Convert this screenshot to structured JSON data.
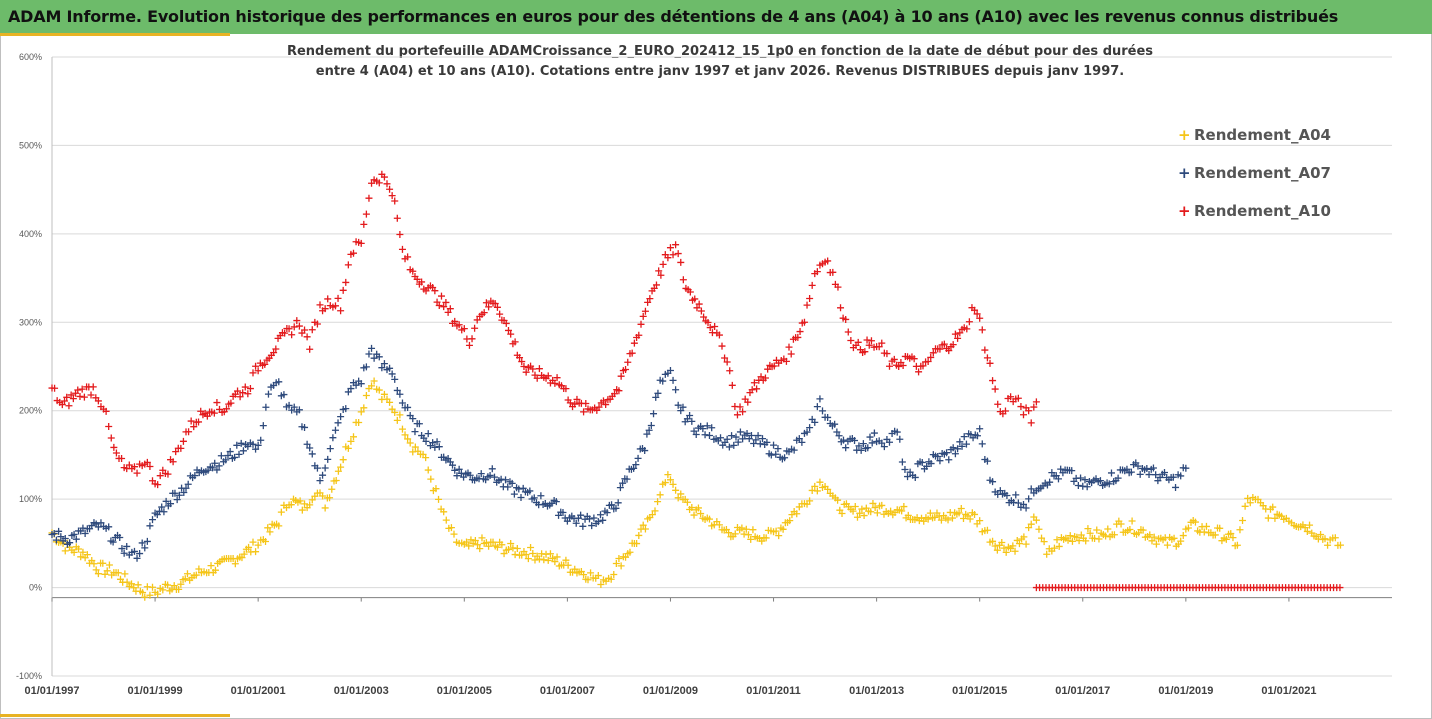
{
  "header": {
    "title": "ADAM Informe. Evolution historique des performances en euros pour des détentions de 4 ans (A04) à 10 ans (A10) avec les revenus connus distribués"
  },
  "colors": {
    "banner": "#6dbb6a",
    "accent": "#e8b324",
    "A04": "#f5c518",
    "A07": "#2e4a7c",
    "A10": "#e31a1c"
  },
  "chart_data": {
    "type": "scatter",
    "title_line1": "Rendement du portefeuille ADAMCroissance_2_EURO_202412_15_1p0  en fonction de la date de début pour des durées",
    "title_line2": "entre 4 (A04) et 10 ans (A10). Cotations entre janv 1997 et janv 2026. Revenus DISTRIBUES depuis janv 1997.",
    "marker": "+",
    "x_unit": "year",
    "xlim": [
      1997.0,
      2022.0
    ],
    "ylim": [
      -100,
      600
    ],
    "y_ticks": [
      -100,
      0,
      100,
      200,
      300,
      400,
      500,
      600
    ],
    "y_tick_labels": [
      "-100%",
      "0%",
      "100%",
      "200%",
      "300%",
      "400%",
      "500%",
      "600%"
    ],
    "x_ticks": [
      1997,
      1999,
      2001,
      2003,
      2005,
      2007,
      2009,
      2011,
      2013,
      2015,
      2017,
      2019,
      2021
    ],
    "x_tick_labels": [
      "01/01/1997",
      "01/01/1999",
      "01/01/2001",
      "01/01/2003",
      "01/01/2005",
      "01/01/2007",
      "01/01/2009",
      "01/01/2011",
      "01/01/2013",
      "01/01/2015",
      "01/01/2017",
      "01/01/2019",
      "01/01/2021"
    ],
    "grid": true,
    "legend_position": "top-right",
    "series": [
      {
        "name": "Rendement_A04",
        "color": "#f5c518",
        "points": [
          [
            1997.0,
            62
          ],
          [
            1997.3,
            45
          ],
          [
            1997.6,
            40
          ],
          [
            1997.9,
            22
          ],
          [
            1998.2,
            18
          ],
          [
            1998.5,
            5
          ],
          [
            1998.8,
            -5
          ],
          [
            1999.0,
            -5
          ],
          [
            1999.2,
            0
          ],
          [
            1999.5,
            5
          ],
          [
            1999.8,
            15
          ],
          [
            2000.0,
            20
          ],
          [
            2000.3,
            25
          ],
          [
            2000.6,
            35
          ],
          [
            2000.9,
            45
          ],
          [
            2001.1,
            55
          ],
          [
            2001.4,
            75
          ],
          [
            2001.6,
            100
          ],
          [
            2001.9,
            90
          ],
          [
            2002.1,
            110
          ],
          [
            2002.3,
            95
          ],
          [
            2002.6,
            140
          ],
          [
            2002.8,
            170
          ],
          [
            2003.0,
            200
          ],
          [
            2003.2,
            235
          ],
          [
            2003.4,
            215
          ],
          [
            2003.6,
            205
          ],
          [
            2003.8,
            185
          ],
          [
            2004.0,
            160
          ],
          [
            2004.2,
            150
          ],
          [
            2004.4,
            115
          ],
          [
            2004.6,
            80
          ],
          [
            2004.8,
            55
          ],
          [
            2005.0,
            45
          ],
          [
            2005.3,
            50
          ],
          [
            2005.6,
            47
          ],
          [
            2005.9,
            43
          ],
          [
            2006.2,
            40
          ],
          [
            2006.5,
            36
          ],
          [
            2006.8,
            30
          ],
          [
            2007.1,
            22
          ],
          [
            2007.4,
            15
          ],
          [
            2007.6,
            8
          ],
          [
            2007.8,
            12
          ],
          [
            2008.0,
            28
          ],
          [
            2008.3,
            50
          ],
          [
            2008.6,
            75
          ],
          [
            2008.8,
            110
          ],
          [
            2009.0,
            125
          ],
          [
            2009.2,
            100
          ],
          [
            2009.5,
            85
          ],
          [
            2009.8,
            75
          ],
          [
            2010.0,
            65
          ],
          [
            2010.3,
            62
          ],
          [
            2010.6,
            60
          ],
          [
            2010.9,
            58
          ],
          [
            2011.1,
            65
          ],
          [
            2011.4,
            85
          ],
          [
            2011.6,
            95
          ],
          [
            2011.8,
            115
          ],
          [
            2012.0,
            120
          ],
          [
            2012.2,
            95
          ],
          [
            2012.5,
            85
          ],
          [
            2012.8,
            88
          ],
          [
            2013.1,
            90
          ],
          [
            2013.4,
            88
          ],
          [
            2013.7,
            82
          ],
          [
            2014.0,
            80
          ],
          [
            2014.3,
            78
          ],
          [
            2014.6,
            85
          ],
          [
            2014.9,
            80
          ],
          [
            2015.1,
            65
          ],
          [
            2015.3,
            50
          ],
          [
            2015.6,
            45
          ],
          [
            2015.9,
            55
          ],
          [
            2016.1,
            80
          ],
          [
            2016.3,
            35
          ],
          [
            2016.5,
            50
          ],
          [
            2016.8,
            58
          ],
          [
            2017.1,
            60
          ],
          [
            2017.4,
            58
          ],
          [
            2017.7,
            70
          ],
          [
            2018.0,
            68
          ],
          [
            2018.3,
            60
          ],
          [
            2018.6,
            50
          ],
          [
            2018.9,
            55
          ],
          [
            2019.1,
            70
          ],
          [
            2019.4,
            65
          ],
          [
            2019.7,
            60
          ],
          [
            2020.0,
            50
          ],
          [
            2020.2,
            100
          ],
          [
            2020.4,
            95
          ],
          [
            2020.6,
            85
          ],
          [
            2020.9,
            82
          ],
          [
            2021.1,
            75
          ],
          [
            2021.4,
            68
          ],
          [
            2021.7,
            55
          ],
          [
            2021.9,
            50
          ],
          [
            2022.0,
            48
          ]
        ]
      },
      {
        "name": "Rendement_A07",
        "color": "#2e4a7c",
        "points": [
          [
            1997.0,
            60
          ],
          [
            1997.3,
            55
          ],
          [
            1997.6,
            62
          ],
          [
            1997.9,
            70
          ],
          [
            1998.1,
            62
          ],
          [
            1998.4,
            45
          ],
          [
            1998.6,
            35
          ],
          [
            1998.8,
            50
          ],
          [
            1999.0,
            80
          ],
          [
            1999.3,
            100
          ],
          [
            1999.6,
            115
          ],
          [
            1999.9,
            135
          ],
          [
            2000.2,
            140
          ],
          [
            2000.5,
            150
          ],
          [
            2000.8,
            165
          ],
          [
            2001.0,
            155
          ],
          [
            2001.2,
            220
          ],
          [
            2001.4,
            230
          ],
          [
            2001.6,
            200
          ],
          [
            2001.8,
            195
          ],
          [
            2002.0,
            160
          ],
          [
            2002.2,
            120
          ],
          [
            2002.4,
            160
          ],
          [
            2002.6,
            190
          ],
          [
            2002.8,
            225
          ],
          [
            2003.0,
            235
          ],
          [
            2003.2,
            270
          ],
          [
            2003.4,
            250
          ],
          [
            2003.6,
            245
          ],
          [
            2003.8,
            210
          ],
          [
            2004.0,
            185
          ],
          [
            2004.3,
            170
          ],
          [
            2004.6,
            150
          ],
          [
            2004.9,
            130
          ],
          [
            2005.2,
            125
          ],
          [
            2005.5,
            130
          ],
          [
            2005.8,
            115
          ],
          [
            2006.1,
            108
          ],
          [
            2006.4,
            100
          ],
          [
            2006.7,
            95
          ],
          [
            2007.0,
            80
          ],
          [
            2007.3,
            75
          ],
          [
            2007.6,
            78
          ],
          [
            2007.9,
            90
          ],
          [
            2008.2,
            130
          ],
          [
            2008.5,
            160
          ],
          [
            2008.8,
            230
          ],
          [
            2009.0,
            240
          ],
          [
            2009.2,
            200
          ],
          [
            2009.5,
            180
          ],
          [
            2009.8,
            175
          ],
          [
            2010.1,
            165
          ],
          [
            2010.4,
            170
          ],
          [
            2010.7,
            165
          ],
          [
            2011.0,
            155
          ],
          [
            2011.3,
            150
          ],
          [
            2011.5,
            165
          ],
          [
            2011.7,
            175
          ],
          [
            2011.9,
            210
          ],
          [
            2012.1,
            185
          ],
          [
            2012.4,
            165
          ],
          [
            2012.7,
            160
          ],
          [
            2013.0,
            170
          ],
          [
            2013.2,
            165
          ],
          [
            2013.4,
            175
          ],
          [
            2013.6,
            120
          ],
          [
            2013.8,
            135
          ],
          [
            2014.1,
            145
          ],
          [
            2014.4,
            150
          ],
          [
            2014.7,
            165
          ],
          [
            2015.0,
            175
          ],
          [
            2015.2,
            125
          ],
          [
            2015.4,
            105
          ],
          [
            2015.7,
            100
          ],
          [
            2015.9,
            95
          ],
          [
            2016.1,
            115
          ],
          [
            2016.4,
            125
          ],
          [
            2016.7,
            130
          ],
          [
            2017.0,
            115
          ],
          [
            2017.3,
            120
          ],
          [
            2017.6,
            125
          ],
          [
            2017.9,
            135
          ],
          [
            2018.2,
            135
          ],
          [
            2018.5,
            125
          ],
          [
            2018.8,
            120
          ],
          [
            2019.0,
            135
          ]
        ]
      },
      {
        "name": "Rendement_A10",
        "color": "#e31a1c",
        "points": [
          [
            1997.0,
            225
          ],
          [
            1997.2,
            205
          ],
          [
            1997.5,
            220
          ],
          [
            1997.8,
            225
          ],
          [
            1998.0,
            205
          ],
          [
            1998.2,
            155
          ],
          [
            1998.4,
            135
          ],
          [
            1998.6,
            130
          ],
          [
            1998.8,
            145
          ],
          [
            1999.0,
            120
          ],
          [
            1999.2,
            130
          ],
          [
            1999.4,
            150
          ],
          [
            1999.6,
            175
          ],
          [
            1999.8,
            190
          ],
          [
            2000.1,
            205
          ],
          [
            2000.3,
            200
          ],
          [
            2000.6,
            220
          ],
          [
            2000.8,
            225
          ],
          [
            2001.0,
            250
          ],
          [
            2001.3,
            270
          ],
          [
            2001.6,
            290
          ],
          [
            2001.8,
            300
          ],
          [
            2002.0,
            275
          ],
          [
            2002.2,
            315
          ],
          [
            2002.4,
            325
          ],
          [
            2002.6,
            320
          ],
          [
            2002.8,
            380
          ],
          [
            2003.0,
            390
          ],
          [
            2003.2,
            460
          ],
          [
            2003.4,
            465
          ],
          [
            2003.6,
            450
          ],
          [
            2003.8,
            380
          ],
          [
            2004.0,
            355
          ],
          [
            2004.3,
            340
          ],
          [
            2004.6,
            320
          ],
          [
            2004.9,
            295
          ],
          [
            2005.1,
            280
          ],
          [
            2005.3,
            310
          ],
          [
            2005.6,
            325
          ],
          [
            2005.9,
            285
          ],
          [
            2006.2,
            245
          ],
          [
            2006.5,
            240
          ],
          [
            2006.8,
            235
          ],
          [
            2007.1,
            210
          ],
          [
            2007.4,
            200
          ],
          [
            2007.7,
            210
          ],
          [
            2008.0,
            225
          ],
          [
            2008.3,
            275
          ],
          [
            2008.6,
            330
          ],
          [
            2008.9,
            370
          ],
          [
            2009.1,
            385
          ],
          [
            2009.3,
            340
          ],
          [
            2009.6,
            315
          ],
          [
            2009.9,
            285
          ],
          [
            2010.1,
            260
          ],
          [
            2010.3,
            195
          ],
          [
            2010.5,
            215
          ],
          [
            2010.8,
            240
          ],
          [
            2011.1,
            255
          ],
          [
            2011.3,
            265
          ],
          [
            2011.6,
            305
          ],
          [
            2011.8,
            355
          ],
          [
            2012.0,
            375
          ],
          [
            2012.2,
            345
          ],
          [
            2012.4,
            300
          ],
          [
            2012.6,
            270
          ],
          [
            2012.9,
            275
          ],
          [
            2013.1,
            270
          ],
          [
            2013.3,
            250
          ],
          [
            2013.6,
            260
          ],
          [
            2013.9,
            245
          ],
          [
            2014.1,
            265
          ],
          [
            2014.4,
            275
          ],
          [
            2014.7,
            290
          ],
          [
            2014.9,
            320
          ],
          [
            2015.0,
            300
          ],
          [
            2015.2,
            250
          ],
          [
            2015.4,
            195
          ],
          [
            2015.6,
            215
          ],
          [
            2015.8,
            205
          ],
          [
            2016.0,
            190
          ],
          [
            2016.1,
            210
          ]
        ]
      },
      {
        "name": "",
        "color": "#e31a1c",
        "segment": "zero-line",
        "x_start": 2016.1,
        "x_end": 2022.0,
        "y": 0
      }
    ],
    "legend": [
      "Rendement_A04",
      "Rendement_A07",
      "Rendement_A10"
    ]
  }
}
